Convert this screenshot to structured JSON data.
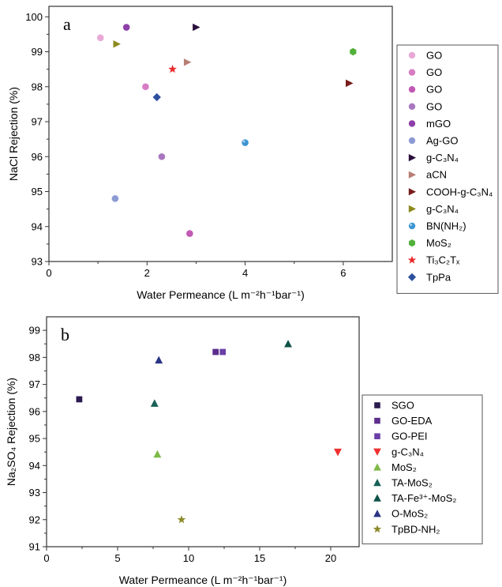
{
  "chart_data": [
    {
      "type": "scatter",
      "panel_label": "a",
      "xlabel": "Water Permeance (L m⁻²h⁻¹bar⁻¹)",
      "ylabel": "NaCl Rejection (%)",
      "xlim": [
        0,
        7
      ],
      "ylim": [
        93,
        100.3
      ],
      "xticks": [
        0,
        2,
        4,
        6
      ],
      "yticks": [
        93,
        94,
        95,
        96,
        97,
        98,
        99,
        100
      ],
      "legend_position": "right",
      "series": [
        {
          "name": "GO",
          "marker": "circle",
          "color": "#e8a9d6",
          "x": [
            1.05
          ],
          "y": [
            99.4
          ]
        },
        {
          "name": "GO",
          "marker": "circle",
          "color": "#d77cc4",
          "x": [
            1.97
          ],
          "y": [
            98.0
          ]
        },
        {
          "name": "GO",
          "marker": "circle",
          "color": "#c25ab5",
          "x": [
            2.87
          ],
          "y": [
            93.8
          ]
        },
        {
          "name": "GO",
          "marker": "circle",
          "color": "#a977c0",
          "x": [
            2.3
          ],
          "y": [
            96.0
          ]
        },
        {
          "name": "mGO",
          "marker": "circle",
          "color": "#8e3fa8",
          "x": [
            1.58
          ],
          "y": [
            99.7
          ]
        },
        {
          "name": "Ag-GO",
          "marker": "circle",
          "color": "#8d9bd3",
          "x": [
            1.35
          ],
          "y": [
            94.8
          ]
        },
        {
          "name": "g-C₃N₄",
          "marker": "triangle-right",
          "color": "#2b0f3b",
          "x": [
            3.0
          ],
          "y": [
            99.7
          ]
        },
        {
          "name": "aCN",
          "marker": "triangle-right",
          "color": "#b87d73",
          "x": [
            2.82
          ],
          "y": [
            98.7
          ]
        },
        {
          "name": "COOH-g-C₃N₄",
          "marker": "triangle-right",
          "color": "#7a1c1c",
          "x": [
            6.12
          ],
          "y": [
            98.1
          ]
        },
        {
          "name": "g-C₃N₄",
          "marker": "triangle-right",
          "color": "#8c8a1e",
          "x": [
            1.38
          ],
          "y": [
            99.22
          ]
        },
        {
          "name": "BN(NH₂)",
          "marker": "sphere",
          "color": "#3d96d2",
          "x": [
            4.0
          ],
          "y": [
            96.4
          ]
        },
        {
          "name": "MoS₂",
          "marker": "hexagon",
          "color": "#52b13b",
          "x": [
            6.2
          ],
          "y": [
            99.0
          ]
        },
        {
          "name": "Ti₃C₂Tₓ",
          "marker": "star",
          "color": "#ea2b2b",
          "x": [
            2.52
          ],
          "y": [
            98.5
          ]
        },
        {
          "name": "TpPa",
          "marker": "diamond",
          "color": "#2c4f9e",
          "x": [
            2.2
          ],
          "y": [
            97.7
          ]
        }
      ]
    },
    {
      "type": "scatter",
      "panel_label": "b",
      "xlabel": "Water Permeance (L m⁻²h⁻¹bar⁻¹)",
      "ylabel": "Na₂SO₄ Rejection (%)",
      "xlim": [
        0,
        22
      ],
      "ylim": [
        91,
        99.5
      ],
      "xticks": [
        0,
        5,
        10,
        15,
        20
      ],
      "yticks": [
        91,
        92,
        93,
        94,
        95,
        96,
        97,
        98,
        99
      ],
      "legend_position": "right",
      "series": [
        {
          "name": "SGO",
          "marker": "square",
          "color": "#2a1a4e",
          "x": [
            2.3
          ],
          "y": [
            96.45
          ]
        },
        {
          "name": "GO-EDA",
          "marker": "square",
          "color": "#5b2e8c",
          "x": [
            11.9
          ],
          "y": [
            98.2
          ]
        },
        {
          "name": "GO-PEI",
          "marker": "square",
          "color": "#6a3fa6",
          "x": [
            12.4
          ],
          "y": [
            98.2
          ]
        },
        {
          "name": "g-C₃N₄",
          "marker": "triangle-down",
          "color": "#ef2f2f",
          "x": [
            20.5
          ],
          "y": [
            94.5
          ]
        },
        {
          "name": "MoS₂",
          "marker": "triangle-up",
          "color": "#7fba49",
          "x": [
            7.8
          ],
          "y": [
            94.42
          ]
        },
        {
          "name": "TA-MoS₂",
          "marker": "triangle-up",
          "color": "#176156",
          "x": [
            7.6
          ],
          "y": [
            96.3
          ]
        },
        {
          "name": "TA-Fe³⁺-MoS₂",
          "marker": "triangle-up",
          "color": "#0f5249",
          "x": [
            17.0
          ],
          "y": [
            98.5
          ]
        },
        {
          "name": "O-MoS₂",
          "marker": "triangle-up",
          "color": "#2b3486",
          "x": [
            7.9
          ],
          "y": [
            97.9
          ]
        },
        {
          "name": "TpBD-NH₂",
          "marker": "star",
          "color": "#8c8a2b",
          "x": [
            9.5
          ],
          "y": [
            92.0
          ]
        }
      ]
    }
  ]
}
